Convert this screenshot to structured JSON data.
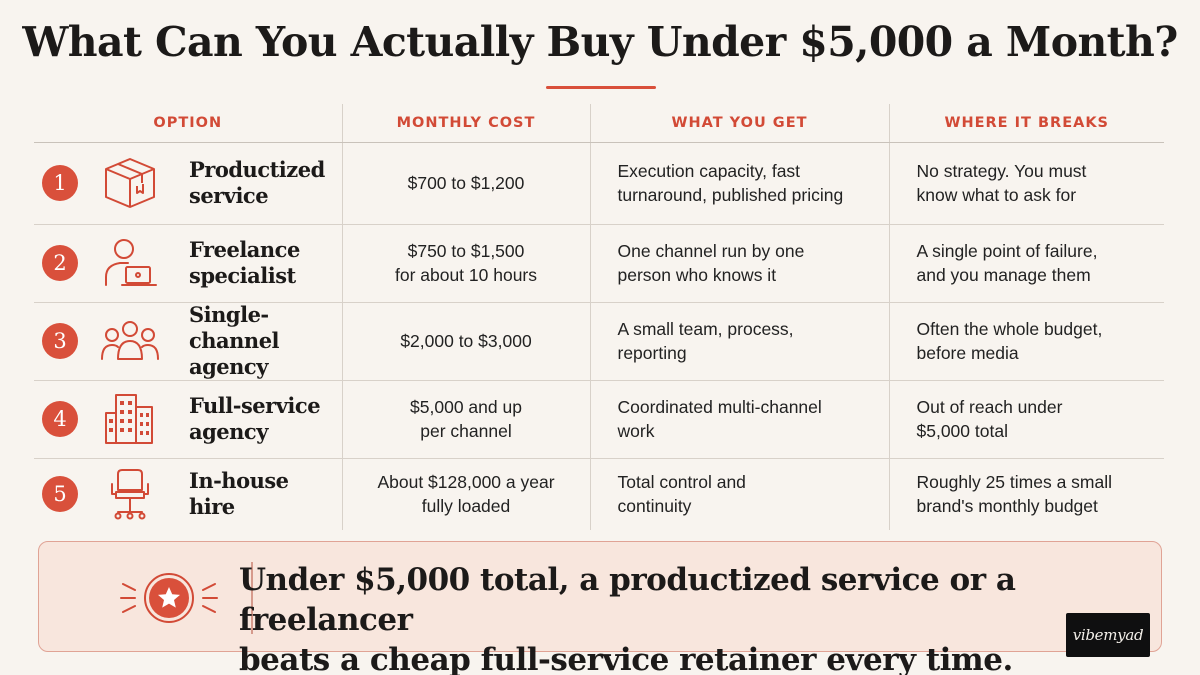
{
  "title": "What Can You Actually Buy Under $5,000 a Month?",
  "headers": {
    "option": "OPTION",
    "cost": "MONTHLY COST",
    "get": "WHAT YOU GET",
    "breaks": "WHERE IT BREAKS"
  },
  "rows": [
    {
      "num": "1",
      "icon": "box-icon",
      "name_1": "Productized",
      "name_2": "service",
      "cost_1": "$700 to $1,200",
      "cost_2": "",
      "get_1": "Execution capacity, fast",
      "get_2": "turnaround, published pricing",
      "breaks_1": "No strategy. You must",
      "breaks_2": "know what to ask for"
    },
    {
      "num": "2",
      "icon": "person-laptop-icon",
      "name_1": "Freelance",
      "name_2": "specialist",
      "cost_1": "$750 to $1,500",
      "cost_2": "for about 10 hours",
      "get_1": "One channel run by one",
      "get_2": "person who knows it",
      "breaks_1": "A single point of failure,",
      "breaks_2": "and you manage them"
    },
    {
      "num": "3",
      "icon": "team-icon",
      "name_1": "Single-channel",
      "name_2": "agency",
      "cost_1": "$2,000 to $3,000",
      "cost_2": "",
      "get_1": "A small team, process,",
      "get_2": "reporting",
      "breaks_1": "Often the whole budget,",
      "breaks_2": "before media"
    },
    {
      "num": "4",
      "icon": "buildings-icon",
      "name_1": "Full-service",
      "name_2": "agency",
      "cost_1": "$5,000 and up",
      "cost_2": "per channel",
      "get_1": "Coordinated multi-channel",
      "get_2": "work",
      "breaks_1": "Out of reach under",
      "breaks_2": "$5,000 total"
    },
    {
      "num": "5",
      "icon": "office-chair-icon",
      "name_1": "In-house",
      "name_2": "hire",
      "cost_1": "About $128,000 a year",
      "cost_2": "fully loaded",
      "get_1": "Total control and",
      "get_2": "continuity",
      "breaks_1": "Roughly 25 times a small",
      "breaks_2": "brand's monthly budget"
    }
  ],
  "callout": {
    "line_1": "Under $5,000 total, a productized service or a freelancer",
    "line_2_a": "beats a cheap full-service retainer ",
    "line_2_b": "every time",
    "line_2_c": ".",
    "icon": "star-badge-icon"
  },
  "watermark": "vibemyad",
  "colors": {
    "accent": "#d9503b",
    "background": "#f8f4ef",
    "callout_bg": "#f8e6dd"
  }
}
